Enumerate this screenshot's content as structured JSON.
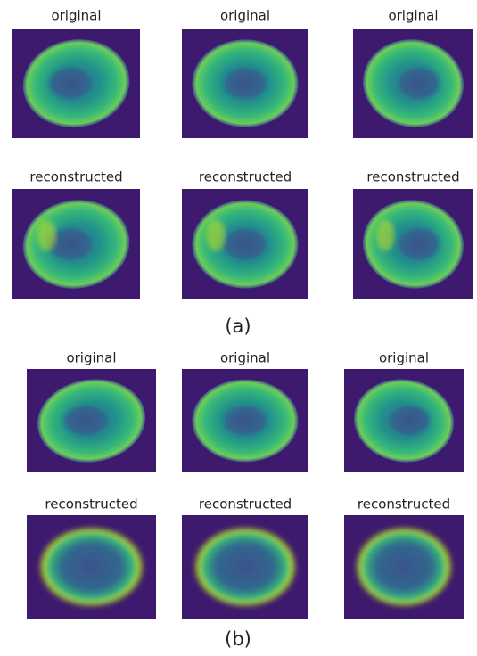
{
  "panels": [
    {
      "rows": [
        {
          "labels": [
            "original",
            "original",
            "original"
          ]
        },
        {
          "labels": [
            "reconstructed",
            "reconstructed",
            "reconstructed"
          ]
        }
      ],
      "caption": "(a)"
    },
    {
      "rows": [
        {
          "labels": [
            "original",
            "original",
            "original"
          ]
        },
        {
          "labels": [
            "reconstructed",
            "reconstructed",
            "reconstructed"
          ]
        }
      ],
      "caption": "(b)"
    }
  ]
}
